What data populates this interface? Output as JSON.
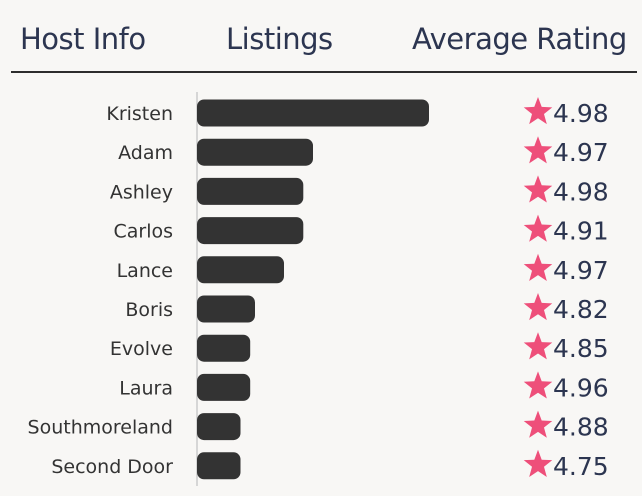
{
  "header": {
    "col1": "Host Info",
    "col2": "Listings",
    "col3": "Average Rating"
  },
  "chart_data": {
    "type": "bar",
    "orientation": "horizontal",
    "categories": [
      "Kristen",
      "Adam",
      "Ashley",
      "Carlos",
      "Lance",
      "Boris",
      "Evolve",
      "Laura",
      "Southmoreland",
      "Second Door"
    ],
    "values": [
      24,
      12,
      11,
      11,
      9,
      6,
      5.5,
      5.5,
      4.5,
      4.5
    ],
    "ratings": [
      "4.98",
      "4.97",
      "4.98",
      "4.91",
      "4.97",
      "4.82",
      "4.85",
      "4.96",
      "4.88",
      "4.75"
    ],
    "xlim": [
      0,
      24
    ],
    "bar_color": "#333333",
    "star_color": "#ee4f7a",
    "star_icon": "star-icon"
  }
}
